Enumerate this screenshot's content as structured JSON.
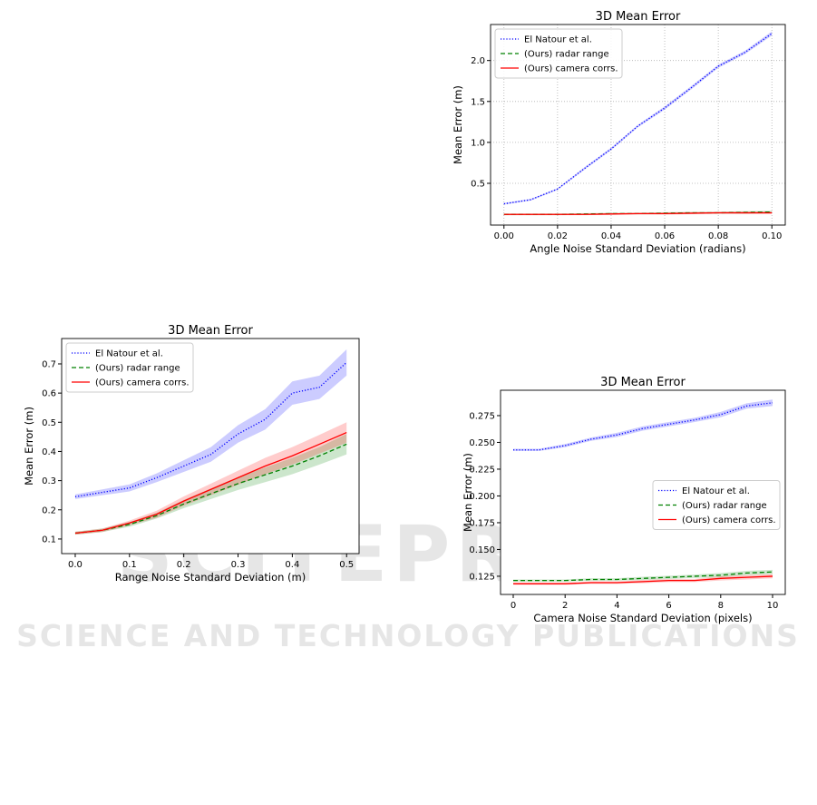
{
  "watermark": {
    "lines": [
      "SCITEPRESS",
      "SCIENCE AND TECHNOLOGY PUBLICATIONS"
    ]
  },
  "chart_data": [
    {
      "type": "line",
      "title": "3D Mean Error",
      "x_label": "Angle Noise Standard Deviation (radians)",
      "y_label": "Mean Error (m)",
      "x": [
        0,
        0.01,
        0.02,
        0.03,
        0.04,
        0.05,
        0.06,
        0.07,
        0.08,
        0.09,
        0.1
      ],
      "xlim": [
        -0.005,
        0.105
      ],
      "xticks": [
        {
          "value": 0,
          "label": "0.00"
        },
        {
          "value": 0.02,
          "label": "0.02"
        },
        {
          "value": 0.04,
          "label": "0.04"
        },
        {
          "value": 0.06,
          "label": "0.06"
        },
        {
          "value": 0.08,
          "label": "0.08"
        },
        {
          "value": 0.1,
          "label": "0.10"
        }
      ],
      "ylim": [
        -0.01,
        2.44
      ],
      "yticks": [
        0.5,
        {
          "value": 1,
          "label": "1.0"
        },
        1.5,
        {
          "value": 2,
          "label": "2.0"
        }
      ],
      "grid": true,
      "legend": "upper left",
      "series": [
        {
          "name": "El Natour et al.",
          "color": "#0000ff",
          "style": "dotted",
          "values": [
            0.25,
            0.3,
            0.43,
            0.68,
            0.92,
            1.2,
            1.42,
            1.67,
            1.93,
            2.1,
            2.33
          ],
          "errors": [
            0.01,
            0.01,
            0.01,
            0.015,
            0.015,
            0.015,
            0.02,
            0.02,
            0.02,
            0.02,
            0.025
          ]
        },
        {
          "name": "(Ours) radar range",
          "color": "#008000",
          "style": "dashed",
          "values": [
            0.12,
            0.12,
            0.12,
            0.125,
            0.13,
            0.13,
            0.135,
            0.14,
            0.14,
            0.145,
            0.15
          ],
          "errors": [
            0.01,
            0.01,
            0.01,
            0.01,
            0.01,
            0.01,
            0.012,
            0.012,
            0.012,
            0.015,
            0.015
          ]
        },
        {
          "name": "(Ours) camera corrs.",
          "color": "#ff0000",
          "style": "solid",
          "values": [
            0.12,
            0.12,
            0.12,
            0.12,
            0.125,
            0.13,
            0.13,
            0.135,
            0.14,
            0.14,
            0.14
          ],
          "errors": [
            0.01,
            0.01,
            0.01,
            0.01,
            0.01,
            0.01,
            0.012,
            0.012,
            0.012,
            0.015,
            0.015
          ]
        }
      ]
    },
    {
      "type": "line",
      "title": "3D Mean Error",
      "x_label": "Range Noise Standard Deviation (m)",
      "y_label": "Mean Error (m)",
      "x": [
        0,
        0.05,
        0.1,
        0.15,
        0.2,
        0.25,
        0.3,
        0.35,
        0.4,
        0.45,
        0.5
      ],
      "xlim": [
        -0.025,
        0.523
      ],
      "xticks": [
        {
          "value": 0,
          "label": "0.0"
        },
        0.1,
        0.2,
        0.3,
        0.4,
        0.5
      ],
      "ylim": [
        0.05,
        0.787
      ],
      "yticks": [
        0.1,
        0.2,
        0.3,
        0.4,
        0.5,
        0.6,
        0.7
      ],
      "grid": false,
      "legend": "upper left",
      "series": [
        {
          "name": "El Natour et al.",
          "color": "#0000ff",
          "style": "dotted",
          "values": [
            0.245,
            0.26,
            0.275,
            0.31,
            0.35,
            0.39,
            0.46,
            0.51,
            0.6,
            0.62,
            0.705
          ],
          "errors": [
            0.008,
            0.01,
            0.012,
            0.015,
            0.02,
            0.025,
            0.03,
            0.035,
            0.04,
            0.04,
            0.045
          ]
        },
        {
          "name": "(Ours) radar range",
          "color": "#008000",
          "style": "dashed",
          "values": [
            0.12,
            0.13,
            0.15,
            0.18,
            0.22,
            0.255,
            0.29,
            0.32,
            0.35,
            0.385,
            0.425
          ],
          "errors": [
            0.005,
            0.006,
            0.008,
            0.01,
            0.014,
            0.018,
            0.022,
            0.025,
            0.028,
            0.03,
            0.035
          ]
        },
        {
          "name": "(Ours) camera corrs.",
          "color": "#ff0000",
          "style": "solid",
          "values": [
            0.12,
            0.13,
            0.155,
            0.185,
            0.23,
            0.27,
            0.31,
            0.35,
            0.385,
            0.425,
            0.465
          ],
          "errors": [
            0.005,
            0.006,
            0.008,
            0.012,
            0.016,
            0.02,
            0.024,
            0.028,
            0.03,
            0.032,
            0.035
          ]
        }
      ]
    },
    {
      "type": "line",
      "title": "3D Mean Error",
      "x_label": "Camera Noise Standard Deviation (pixels)",
      "y_label": "Mean Error (m)",
      "x": [
        0,
        1,
        2,
        3,
        4,
        5,
        6,
        7,
        8,
        9,
        10
      ],
      "xlim": [
        -0.49,
        10.49
      ],
      "xticks": [
        0,
        2,
        4,
        6,
        8,
        10
      ],
      "ylim": [
        0.108,
        0.2987
      ],
      "yticks": [
        0.125,
        {
          "value": 0.15,
          "label": "0.150"
        },
        0.175,
        {
          "value": 0.2,
          "label": "0.200"
        },
        0.225,
        {
          "value": 0.25,
          "label": "0.250"
        },
        0.275
      ],
      "grid": false,
      "legend": "center right",
      "series": [
        {
          "name": "El Natour et al.",
          "color": "#0000ff",
          "style": "dotted",
          "values": [
            0.243,
            0.243,
            0.247,
            0.253,
            0.257,
            0.263,
            0.267,
            0.271,
            0.276,
            0.284,
            0.287
          ],
          "errors": [
            0.001,
            0.001,
            0.0015,
            0.0015,
            0.002,
            0.002,
            0.002,
            0.002,
            0.0025,
            0.0025,
            0.003
          ]
        },
        {
          "name": "(Ours) radar range",
          "color": "#008000",
          "style": "dashed",
          "values": [
            0.121,
            0.121,
            0.121,
            0.122,
            0.122,
            0.123,
            0.124,
            0.125,
            0.126,
            0.128,
            0.129
          ],
          "errors": [
            0.001,
            0.001,
            0.001,
            0.0012,
            0.0012,
            0.0015,
            0.0015,
            0.0015,
            0.002,
            0.002,
            0.002
          ]
        },
        {
          "name": "(Ours) camera corrs.",
          "color": "#ff0000",
          "style": "solid",
          "values": [
            0.118,
            0.118,
            0.118,
            0.119,
            0.119,
            0.12,
            0.121,
            0.121,
            0.123,
            0.124,
            0.125
          ],
          "errors": [
            0.001,
            0.001,
            0.001,
            0.0012,
            0.0012,
            0.0015,
            0.0015,
            0.0015,
            0.002,
            0.002,
            0.002
          ]
        }
      ]
    }
  ]
}
